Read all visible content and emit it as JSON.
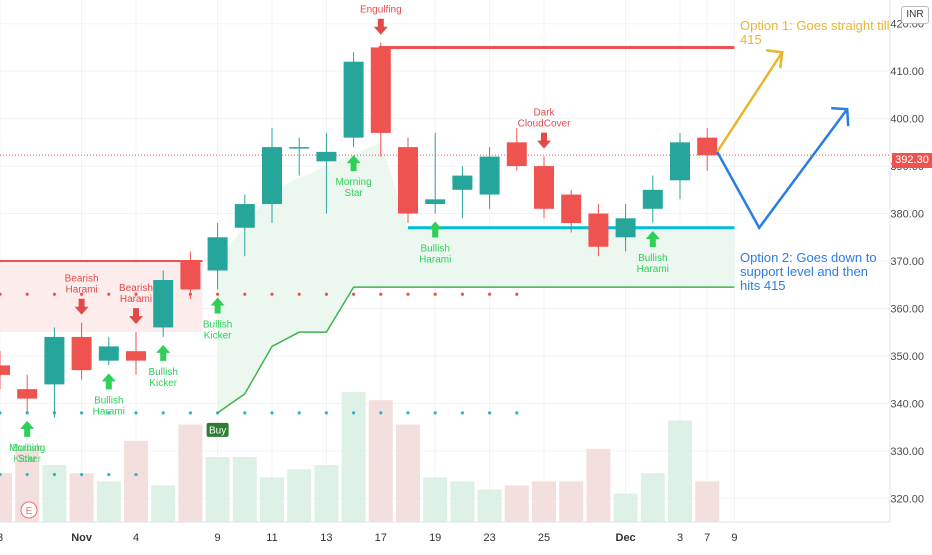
{
  "chart_data": {
    "type": "candlestick",
    "currency": "INR",
    "last_price": "392.30",
    "ylim": [
      315,
      425
    ],
    "yticks": [
      320,
      330,
      340,
      350,
      360,
      370,
      380,
      390,
      400,
      410,
      420
    ],
    "xtick_labels": [
      {
        "i": 0,
        "label": "3",
        "bold": false
      },
      {
        "i": 3,
        "label": "Nov",
        "bold": true
      },
      {
        "i": 5,
        "label": "4",
        "bold": false
      },
      {
        "i": 8,
        "label": "9",
        "bold": false
      },
      {
        "i": 10,
        "label": "11",
        "bold": false
      },
      {
        "i": 12,
        "label": "13",
        "bold": false
      },
      {
        "i": 14,
        "label": "17",
        "bold": false
      },
      {
        "i": 16,
        "label": "19",
        "bold": false
      },
      {
        "i": 18,
        "label": "23",
        "bold": false
      },
      {
        "i": 20,
        "label": "25",
        "bold": false
      },
      {
        "i": 23,
        "label": "Dec",
        "bold": true
      },
      {
        "i": 25,
        "label": "3",
        "bold": false
      },
      {
        "i": 26,
        "label": "7",
        "bold": false
      },
      {
        "i": 27,
        "label": "9",
        "bold": false
      }
    ],
    "candles": [
      {
        "o": 348,
        "h": 351,
        "l": 343,
        "c": 346,
        "v": 0.6
      },
      {
        "o": 343,
        "h": 346,
        "l": 338,
        "c": 341,
        "v": 0.9
      },
      {
        "o": 344,
        "h": 356,
        "l": 337,
        "c": 354,
        "v": 0.7
      },
      {
        "o": 354,
        "h": 357,
        "l": 345,
        "c": 347,
        "v": 0.6
      },
      {
        "o": 349,
        "h": 354,
        "l": 348,
        "c": 352,
        "v": 0.5
      },
      {
        "o": 351,
        "h": 355,
        "l": 346,
        "c": 349,
        "v": 1.0
      },
      {
        "o": 356,
        "h": 368,
        "l": 354,
        "c": 366,
        "v": 0.45
      },
      {
        "o": 370,
        "h": 372,
        "l": 362,
        "c": 364,
        "v": 1.2
      },
      {
        "o": 368,
        "h": 378,
        "l": 364,
        "c": 375,
        "v": 0.8
      },
      {
        "o": 377,
        "h": 384,
        "l": 371,
        "c": 382,
        "v": 0.8
      },
      {
        "o": 382,
        "h": 398,
        "l": 378,
        "c": 394,
        "v": 0.55
      },
      {
        "o": 394,
        "h": 396,
        "l": 388,
        "c": 394,
        "v": 0.65
      },
      {
        "o": 391,
        "h": 397,
        "l": 380,
        "c": 393,
        "v": 0.7
      },
      {
        "o": 396,
        "h": 414,
        "l": 394,
        "c": 412,
        "v": 1.6
      },
      {
        "o": 415,
        "h": 416,
        "l": 392,
        "c": 397,
        "v": 1.5
      },
      {
        "o": 394,
        "h": 396,
        "l": 378,
        "c": 380,
        "v": 1.2
      },
      {
        "o": 382,
        "h": 397,
        "l": 380,
        "c": 383,
        "v": 0.55
      },
      {
        "o": 385,
        "h": 390,
        "l": 379,
        "c": 388,
        "v": 0.5
      },
      {
        "o": 384,
        "h": 394,
        "l": 381,
        "c": 392,
        "v": 0.4
      },
      {
        "o": 395,
        "h": 398,
        "l": 389,
        "c": 390,
        "v": 0.45
      },
      {
        "o": 390,
        "h": 392,
        "l": 379,
        "c": 381,
        "v": 0.5
      },
      {
        "o": 384,
        "h": 385,
        "l": 376,
        "c": 378,
        "v": 0.5
      },
      {
        "o": 380,
        "h": 382,
        "l": 371,
        "c": 373,
        "v": 0.9
      },
      {
        "o": 375,
        "h": 382,
        "l": 372,
        "c": 379,
        "v": 0.35
      },
      {
        "o": 381,
        "h": 388,
        "l": 378,
        "c": 385,
        "v": 0.6
      },
      {
        "o": 387,
        "h": 397,
        "l": 383,
        "c": 395,
        "v": 1.25
      },
      {
        "o": 396,
        "h": 398,
        "l": 389,
        "c": 392.3,
        "v": 0.5
      }
    ],
    "resistance_zone": {
      "top": 370,
      "bottom": 355,
      "from_i": 0,
      "to_i": 7
    },
    "resistance_line": {
      "y": 415,
      "from_i": 14,
      "to_i": 27
    },
    "support_line": {
      "y": 377,
      "from_i": 15,
      "to_i": 27
    },
    "trailing_stop": [
      [
        8,
        338
      ],
      [
        9,
        342
      ],
      [
        10,
        352
      ],
      [
        11,
        355
      ],
      [
        12,
        355
      ],
      [
        13,
        364.5
      ],
      [
        27,
        364.5
      ]
    ],
    "red_dots": {
      "y": 363,
      "from_i": 0,
      "to_i": 19
    },
    "cyan_dots_1": {
      "y": 338,
      "from_i": 0,
      "to_i": 19
    },
    "cyan_dots_2": {
      "y": 325,
      "from_i": 0,
      "to_i": 5
    },
    "patterns": [
      {
        "i": 1,
        "kind": "bull",
        "label_lines": [
          "Morning",
          "Star"
        ],
        "label_lines_b": [
          "Bullish",
          "Kicker"
        ]
      },
      {
        "i": 3,
        "kind": "bear",
        "label_lines": [
          "Bearish",
          "Harami"
        ]
      },
      {
        "i": 4,
        "kind": "bull",
        "label_lines": [
          "Bullish",
          "Harami"
        ]
      },
      {
        "i": 5,
        "kind": "bear",
        "label_lines": [
          "Bearish",
          "Harami"
        ]
      },
      {
        "i": 6,
        "kind": "bull",
        "label_lines": [
          "Bullish",
          "Kicker"
        ]
      },
      {
        "i": 8,
        "kind": "bull",
        "label_lines": [
          "Bullish",
          "Kicker"
        ]
      },
      {
        "i": 13,
        "kind": "bull",
        "label_lines": [
          "Morning",
          "Star"
        ]
      },
      {
        "i": 14,
        "kind": "bear",
        "label_lines": [
          "Engulfing"
        ]
      },
      {
        "i": 16,
        "kind": "bull",
        "label_lines": [
          "Bullish",
          "Harami"
        ]
      },
      {
        "i": 20,
        "kind": "bear",
        "label_lines": [
          "Dark",
          "CloudCover"
        ]
      },
      {
        "i": 24,
        "kind": "bull",
        "label_lines": [
          "Bullish",
          "Harami"
        ]
      }
    ],
    "buy_signal": {
      "i": 8,
      "label": "Buy"
    },
    "e_marker": "E",
    "option1": {
      "lines": [
        "Option 1: Goes straight till",
        "415"
      ]
    },
    "option2": {
      "lines": [
        "Option 2: Goes down to",
        "support level and then",
        "hits 415"
      ]
    },
    "colors": {
      "up": "#26a69a",
      "down": "#ef5350",
      "resistance": "#ef5350",
      "support": "#00bcd4",
      "trail": "#3ab54a",
      "option1": "#e8b62c",
      "option2": "#2a7de1",
      "bull_arrow": "#2fcf5a",
      "bear_arrow": "#e24a4a"
    }
  }
}
